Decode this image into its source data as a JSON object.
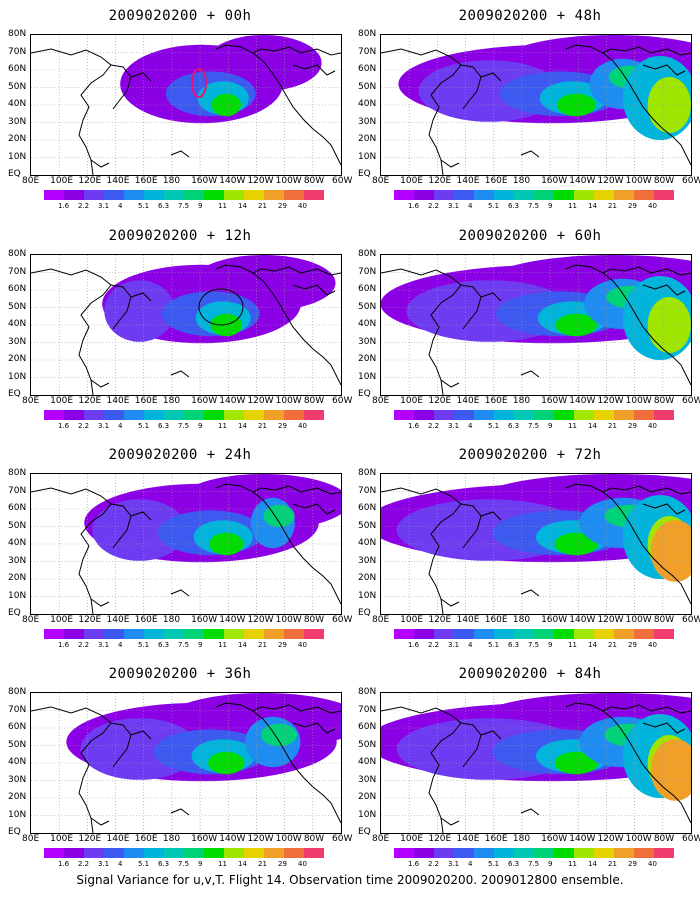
{
  "figure": {
    "caption": "Signal Variance for u,v,T. Flight 14. Observation time 2009020200. 2009012800 ensemble.",
    "lat_labels": [
      "80N",
      "70N",
      "60N",
      "50N",
      "40N",
      "30N",
      "20N",
      "10N",
      "EQ"
    ],
    "lon_labels": [
      "80E",
      "100E",
      "120E",
      "140E",
      "160E",
      "180",
      "160W",
      "140W",
      "120W",
      "100W",
      "80W",
      "60W"
    ],
    "colorbar": {
      "levels": [
        "1.6",
        "2.2",
        "3.1",
        "4",
        "5.1",
        "6.3",
        "7.5",
        "9",
        "11",
        "14",
        "21",
        "29",
        "40"
      ],
      "colors": [
        "#b400ff",
        "#8c00e6",
        "#6e3cf0",
        "#3c5af0",
        "#1e8cf0",
        "#00b4dc",
        "#00c8b4",
        "#00d278",
        "#00dc00",
        "#a0e600",
        "#e6d200",
        "#f0a028",
        "#f06e3c",
        "#f03c6e",
        "#f01ea0"
      ]
    },
    "panels": [
      {
        "title": "2009020200 + 00h",
        "lead": 0
      },
      {
        "title": "2009020200 + 48h",
        "lead": 48
      },
      {
        "title": "2009020200 + 12h",
        "lead": 12
      },
      {
        "title": "2009020200 + 60h",
        "lead": 60
      },
      {
        "title": "2009020200 + 24h",
        "lead": 24
      },
      {
        "title": "2009020200 + 72h",
        "lead": 72
      },
      {
        "title": "2009020200 + 36h",
        "lead": 36
      },
      {
        "title": "2009020200 + 84h",
        "lead": 84
      }
    ]
  }
}
